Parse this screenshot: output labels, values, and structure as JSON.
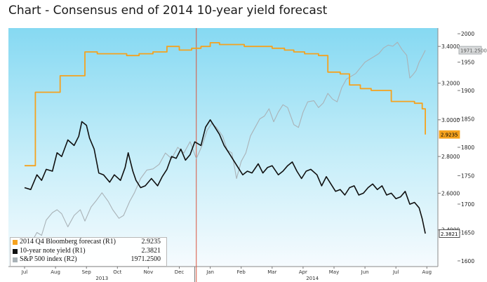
{
  "title": "Chart - Consensus end of 2014 10-year yield forecast",
  "colors": {
    "background_top": "#86d9f2",
    "background_bottom": "#f6fbfe",
    "forecast": "#f5a21e",
    "yield": "#101010",
    "sp500": "#a9b2b7",
    "marker": "#d9553f"
  },
  "chart_data": {
    "type": "line",
    "x_ticks": [
      "Jul",
      "Aug",
      "Sep",
      "Oct",
      "Nov",
      "Dec",
      "Jan",
      "Feb",
      "Mar",
      "Apr",
      "May",
      "Jun",
      "Jul",
      "Aug"
    ],
    "year_labels": [
      "2013",
      "2014"
    ],
    "left_axis": {
      "visible": false,
      "range": [
        2.2,
        3.5
      ]
    },
    "right_axis_r1": {
      "range": [
        2.2,
        3.5
      ],
      "ticks": [
        "2.4000",
        "2.6000",
        "2.8000",
        "3.0000",
        "3.2000",
        "3.4000"
      ]
    },
    "right_axis_r2": {
      "range": [
        1590,
        2010
      ],
      "ticks": [
        "1600",
        "1650",
        "1700",
        "1750",
        "1800",
        "1850",
        "1900",
        "1950",
        "2000"
      ]
    },
    "grid": false,
    "legend_position": "bottom-left",
    "series": [
      {
        "name": "2014 Q4 Bloomberg forecast (R1)",
        "value_label": "2.9235",
        "axis": "R1",
        "step": true,
        "points": [
          [
            0.0,
            2.75
          ],
          [
            0.35,
            3.15
          ],
          [
            1.15,
            3.24
          ],
          [
            1.95,
            3.37
          ],
          [
            2.35,
            3.36
          ],
          [
            2.7,
            3.36
          ],
          [
            3.3,
            3.35
          ],
          [
            3.7,
            3.36
          ],
          [
            4.15,
            3.37
          ],
          [
            4.6,
            3.4
          ],
          [
            5.0,
            3.38
          ],
          [
            5.4,
            3.39
          ],
          [
            5.7,
            3.4
          ],
          [
            6.0,
            3.42
          ],
          [
            6.3,
            3.41
          ],
          [
            6.7,
            3.41
          ],
          [
            7.1,
            3.4
          ],
          [
            7.5,
            3.4
          ],
          [
            8.0,
            3.39
          ],
          [
            8.4,
            3.38
          ],
          [
            8.7,
            3.37
          ],
          [
            9.05,
            3.36
          ],
          [
            9.5,
            3.35
          ],
          [
            9.8,
            3.26
          ],
          [
            10.2,
            3.25
          ],
          [
            10.5,
            3.19
          ],
          [
            10.85,
            3.17
          ],
          [
            11.2,
            3.16
          ],
          [
            11.6,
            3.16
          ],
          [
            11.85,
            3.1
          ],
          [
            12.2,
            3.1
          ],
          [
            12.6,
            3.09
          ],
          [
            12.85,
            3.06
          ],
          [
            12.95,
            2.92
          ]
        ]
      },
      {
        "name": "10-year note yield (R1)",
        "value_label": "2.3821",
        "axis": "R1",
        "step": false,
        "points": [
          [
            0.0,
            2.63
          ],
          [
            0.2,
            2.62
          ],
          [
            0.4,
            2.7
          ],
          [
            0.55,
            2.67
          ],
          [
            0.7,
            2.73
          ],
          [
            0.9,
            2.72
          ],
          [
            1.05,
            2.82
          ],
          [
            1.2,
            2.8
          ],
          [
            1.4,
            2.89
          ],
          [
            1.6,
            2.86
          ],
          [
            1.75,
            2.91
          ],
          [
            1.85,
            2.99
          ],
          [
            2.0,
            2.97
          ],
          [
            2.1,
            2.9
          ],
          [
            2.25,
            2.84
          ],
          [
            2.4,
            2.71
          ],
          [
            2.55,
            2.7
          ],
          [
            2.75,
            2.66
          ],
          [
            2.9,
            2.7
          ],
          [
            3.1,
            2.67
          ],
          [
            3.25,
            2.74
          ],
          [
            3.35,
            2.82
          ],
          [
            3.5,
            2.72
          ],
          [
            3.6,
            2.67
          ],
          [
            3.75,
            2.63
          ],
          [
            3.9,
            2.64
          ],
          [
            4.1,
            2.68
          ],
          [
            4.3,
            2.64
          ],
          [
            4.45,
            2.69
          ],
          [
            4.6,
            2.73
          ],
          [
            4.75,
            2.8
          ],
          [
            4.9,
            2.79
          ],
          [
            5.05,
            2.84
          ],
          [
            5.2,
            2.78
          ],
          [
            5.35,
            2.81
          ],
          [
            5.5,
            2.88
          ],
          [
            5.7,
            2.86
          ],
          [
            5.85,
            2.96
          ],
          [
            6.0,
            3.0
          ],
          [
            6.15,
            2.96
          ],
          [
            6.3,
            2.92
          ],
          [
            6.45,
            2.86
          ],
          [
            6.6,
            2.82
          ],
          [
            6.75,
            2.78
          ],
          [
            6.9,
            2.74
          ],
          [
            7.05,
            2.7
          ],
          [
            7.2,
            2.72
          ],
          [
            7.35,
            2.71
          ],
          [
            7.55,
            2.76
          ],
          [
            7.7,
            2.71
          ],
          [
            7.85,
            2.74
          ],
          [
            8.0,
            2.75
          ],
          [
            8.2,
            2.7
          ],
          [
            8.35,
            2.72
          ],
          [
            8.5,
            2.75
          ],
          [
            8.65,
            2.77
          ],
          [
            8.8,
            2.72
          ],
          [
            8.95,
            2.68
          ],
          [
            9.1,
            2.72
          ],
          [
            9.25,
            2.73
          ],
          [
            9.45,
            2.7
          ],
          [
            9.6,
            2.64
          ],
          [
            9.75,
            2.69
          ],
          [
            9.9,
            2.65
          ],
          [
            10.05,
            2.61
          ],
          [
            10.2,
            2.62
          ],
          [
            10.35,
            2.59
          ],
          [
            10.5,
            2.63
          ],
          [
            10.65,
            2.64
          ],
          [
            10.8,
            2.59
          ],
          [
            10.95,
            2.6
          ],
          [
            11.1,
            2.63
          ],
          [
            11.25,
            2.65
          ],
          [
            11.4,
            2.62
          ],
          [
            11.55,
            2.64
          ],
          [
            11.7,
            2.59
          ],
          [
            11.85,
            2.6
          ],
          [
            12.0,
            2.57
          ],
          [
            12.15,
            2.58
          ],
          [
            12.3,
            2.61
          ],
          [
            12.45,
            2.54
          ],
          [
            12.6,
            2.55
          ],
          [
            12.75,
            2.52
          ],
          [
            12.85,
            2.46
          ],
          [
            12.95,
            2.38
          ]
        ]
      },
      {
        "name": "S&P 500 index (R2)",
        "value_label": "1971.2500",
        "axis": "R2",
        "step": false,
        "points": [
          [
            0.0,
            1615
          ],
          [
            0.2,
            1630
          ],
          [
            0.4,
            1650
          ],
          [
            0.55,
            1645
          ],
          [
            0.7,
            1672
          ],
          [
            0.9,
            1685
          ],
          [
            1.05,
            1690
          ],
          [
            1.2,
            1683
          ],
          [
            1.4,
            1660
          ],
          [
            1.6,
            1680
          ],
          [
            1.8,
            1690
          ],
          [
            1.95,
            1670
          ],
          [
            2.15,
            1695
          ],
          [
            2.3,
            1705
          ],
          [
            2.5,
            1720
          ],
          [
            2.7,
            1705
          ],
          [
            2.85,
            1690
          ],
          [
            3.05,
            1675
          ],
          [
            3.2,
            1680
          ],
          [
            3.4,
            1705
          ],
          [
            3.55,
            1720
          ],
          [
            3.75,
            1745
          ],
          [
            3.95,
            1760
          ],
          [
            4.15,
            1762
          ],
          [
            4.35,
            1770
          ],
          [
            4.55,
            1790
          ],
          [
            4.75,
            1780
          ],
          [
            4.95,
            1800
          ],
          [
            5.15,
            1790
          ],
          [
            5.35,
            1810
          ],
          [
            5.55,
            1780
          ],
          [
            5.75,
            1805
          ],
          [
            5.9,
            1830
          ],
          [
            6.05,
            1842
          ],
          [
            6.2,
            1835
          ],
          [
            6.4,
            1820
          ],
          [
            6.55,
            1795
          ],
          [
            6.7,
            1790
          ],
          [
            6.85,
            1745
          ],
          [
            7.0,
            1775
          ],
          [
            7.15,
            1790
          ],
          [
            7.3,
            1820
          ],
          [
            7.45,
            1835
          ],
          [
            7.6,
            1850
          ],
          [
            7.75,
            1855
          ],
          [
            7.9,
            1868
          ],
          [
            8.05,
            1845
          ],
          [
            8.2,
            1862
          ],
          [
            8.35,
            1875
          ],
          [
            8.5,
            1870
          ],
          [
            8.7,
            1840
          ],
          [
            8.85,
            1835
          ],
          [
            9.0,
            1862
          ],
          [
            9.15,
            1880
          ],
          [
            9.35,
            1882
          ],
          [
            9.5,
            1870
          ],
          [
            9.65,
            1878
          ],
          [
            9.8,
            1895
          ],
          [
            9.95,
            1885
          ],
          [
            10.1,
            1880
          ],
          [
            10.25,
            1905
          ],
          [
            10.4,
            1920
          ],
          [
            10.55,
            1925
          ],
          [
            10.7,
            1930
          ],
          [
            10.85,
            1940
          ],
          [
            11.0,
            1950
          ],
          [
            11.15,
            1955
          ],
          [
            11.3,
            1960
          ],
          [
            11.45,
            1965
          ],
          [
            11.6,
            1975
          ],
          [
            11.75,
            1980
          ],
          [
            11.9,
            1978
          ],
          [
            12.05,
            1985
          ],
          [
            12.2,
            1972
          ],
          [
            12.35,
            1962
          ],
          [
            12.45,
            1922
          ],
          [
            12.55,
            1928
          ],
          [
            12.65,
            1935
          ],
          [
            12.75,
            1950
          ],
          [
            12.85,
            1960
          ],
          [
            12.95,
            1971
          ]
        ]
      }
    ],
    "marker_x": 5.55
  }
}
